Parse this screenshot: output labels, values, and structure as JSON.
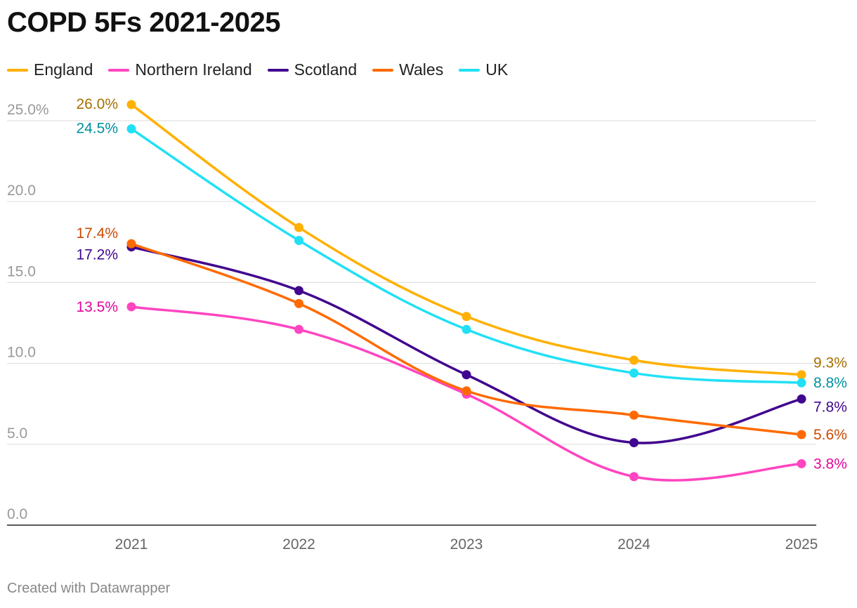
{
  "title": "COPD 5Fs 2021-2025",
  "footer": "Created with Datawrapper",
  "legend": [
    {
      "name": "England",
      "color": "#ffb000"
    },
    {
      "name": "Northern Ireland",
      "color": "#ff45c0"
    },
    {
      "name": "Scotland",
      "color": "#41068f"
    },
    {
      "name": "Wales",
      "color": "#ff6a00"
    },
    {
      "name": "UK",
      "color": "#21e0f5"
    }
  ],
  "chart_data": {
    "type": "line",
    "x": [
      "2021",
      "2022",
      "2023",
      "2024",
      "2025"
    ],
    "ylim": [
      0,
      25
    ],
    "y_ticks": [
      "0.0",
      "5.0",
      "10.0",
      "15.0",
      "20.0",
      "25.0%"
    ],
    "grid": true,
    "legend_position": "top-left",
    "series": [
      {
        "name": "England",
        "color": "#ffb000",
        "label_color": "#a66f00",
        "values": [
          26.0,
          18.4,
          12.9,
          10.2,
          9.3
        ],
        "start_label": "26.0%",
        "end_label": "9.3%"
      },
      {
        "name": "Northern Ireland",
        "color": "#ff45c0",
        "label_color": "#e0089c",
        "values": [
          13.5,
          12.1,
          8.1,
          3.0,
          3.8
        ],
        "start_label": "13.5%",
        "end_label": "3.8%"
      },
      {
        "name": "Scotland",
        "color": "#41068f",
        "label_color": "#41068f",
        "values": [
          17.2,
          14.5,
          9.3,
          5.1,
          7.8
        ],
        "start_label": "17.2%",
        "end_label": "7.8%"
      },
      {
        "name": "Wales",
        "color": "#ff6a00",
        "label_color": "#cc4a00",
        "values": [
          17.4,
          13.7,
          8.3,
          6.8,
          5.6
        ],
        "start_label": "17.4%",
        "end_label": "5.6%"
      },
      {
        "name": "UK",
        "color": "#21e0f5",
        "label_color": "#00909f",
        "values": [
          24.5,
          17.6,
          12.1,
          9.4,
          8.8
        ],
        "start_label": "24.5%",
        "end_label": "8.8%"
      }
    ]
  }
}
